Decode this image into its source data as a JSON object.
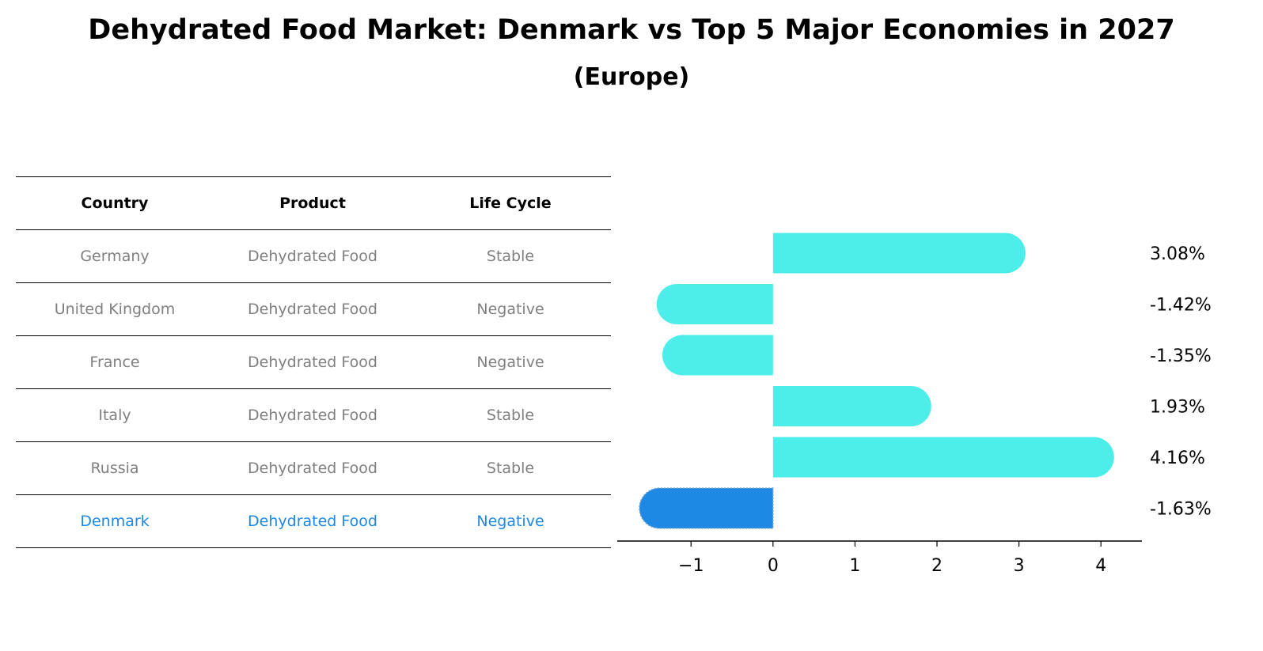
{
  "title": "Dehydrated Food Market: Denmark vs Top 5 Major Economies in 2027",
  "subtitle": "(Europe)",
  "table": {
    "headers": [
      "Country",
      "Product",
      "Life Cycle"
    ],
    "rows": [
      [
        "Germany",
        "Dehydrated Food",
        "Stable"
      ],
      [
        "United Kingdom",
        "Dehydrated Food",
        "Negative"
      ],
      [
        "France",
        "Dehydrated Food",
        "Negative"
      ],
      [
        "Italy",
        "Dehydrated Food",
        "Stable"
      ],
      [
        "Russia",
        "Dehydrated Food",
        "Stable"
      ],
      [
        "Denmark",
        "Dehydrated Food",
        "Negative"
      ]
    ]
  },
  "colors": {
    "bar": "#4deeea",
    "highlight": "#1e88e5",
    "muted_text": "#808080"
  },
  "chart_data": {
    "type": "bar",
    "orientation": "horizontal",
    "categories": [
      "Germany",
      "United Kingdom",
      "France",
      "Italy",
      "Russia",
      "Denmark"
    ],
    "values": [
      3.08,
      -1.42,
      -1.35,
      1.93,
      4.16,
      -1.63
    ],
    "value_labels": [
      "3.08%",
      "-1.42%",
      "-1.35%",
      "1.93%",
      "4.16%",
      "-1.63%"
    ],
    "highlight_category": "Denmark",
    "xlim": [
      -1.9,
      4.5
    ],
    "xticks": [
      -1,
      0,
      1,
      2,
      3,
      4
    ],
    "xtick_labels": [
      "−1",
      "0",
      "1",
      "2",
      "3",
      "4"
    ],
    "xlabel": "",
    "ylabel": "",
    "grid": false
  }
}
